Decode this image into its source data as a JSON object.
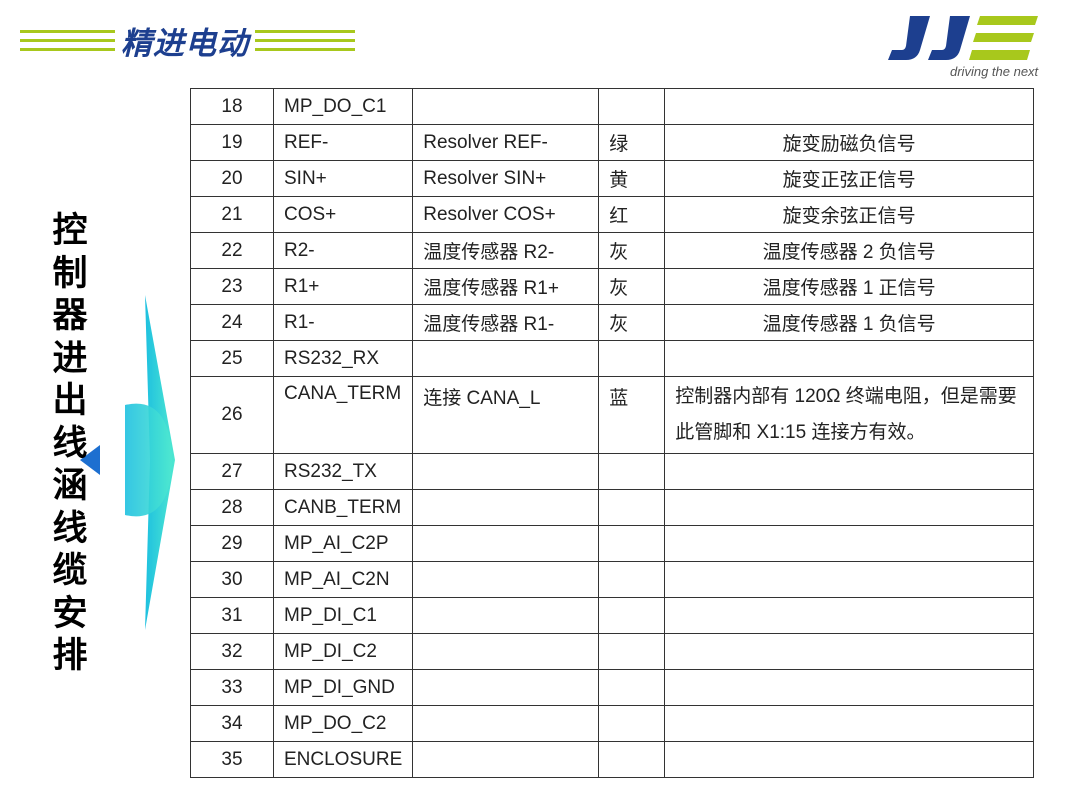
{
  "header": {
    "brand": "精进电动",
    "logo_text": "JJE",
    "tagline": "driving the next",
    "accent": "#a8c81c",
    "brand_color": "#1d3f8f"
  },
  "side_title": "控制器进出线涵线缆安排",
  "table": {
    "rows": [
      [
        "18",
        "MP_DO_C1",
        "",
        "",
        ""
      ],
      [
        "19",
        "REF-",
        "Resolver REF-",
        "绿",
        "旋变励磁负信号"
      ],
      [
        "20",
        "SIN+",
        "Resolver SIN+",
        "黄",
        "旋变正弦正信号"
      ],
      [
        "21",
        "COS+",
        "Resolver COS+",
        "红",
        "旋变余弦正信号"
      ],
      [
        "22",
        "R2-",
        "温度传感器 R2-",
        "灰",
        "温度传感器 2 负信号"
      ],
      [
        "23",
        "R1+",
        "温度传感器 R1+",
        "灰",
        "温度传感器 1 正信号"
      ],
      [
        "24",
        "R1-",
        "温度传感器 R1-",
        "灰",
        "温度传感器 1 负信号"
      ],
      [
        "25",
        "RS232_RX",
        "",
        "",
        ""
      ],
      [
        "26",
        "CANA_TERM",
        "连接 CANA_L",
        "蓝",
        "控制器内部有 120Ω 终端电阻，但是需要此管脚和 X1:15 连接方有效。"
      ],
      [
        "27",
        "RS232_TX",
        "",
        "",
        ""
      ],
      [
        "28",
        "CANB_TERM",
        "",
        "",
        ""
      ],
      [
        "29",
        "MP_AI_C2P",
        "",
        "",
        ""
      ],
      [
        "30",
        "MP_AI_C2N",
        "",
        "",
        ""
      ],
      [
        "31",
        "MP_DI_C1",
        "",
        "",
        ""
      ],
      [
        "32",
        "MP_DI_C2",
        "",
        "",
        ""
      ],
      [
        "33",
        "MP_DI_GND",
        "",
        "",
        ""
      ],
      [
        "34",
        "MP_DO_C2",
        "",
        "",
        ""
      ],
      [
        "35",
        "ENCLOSURE",
        "",
        "",
        ""
      ]
    ]
  }
}
